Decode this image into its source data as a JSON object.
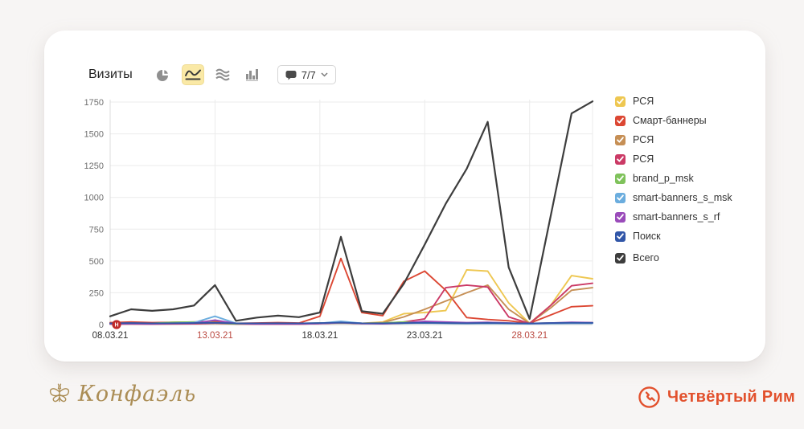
{
  "toolbar": {
    "title": "Визиты",
    "counter_label": "7/7",
    "buttons": [
      "pie-chart",
      "line-chart",
      "stacked-areas",
      "columns"
    ],
    "selected_button": "line-chart",
    "selected_bg": "#fae9a6"
  },
  "chart_data": {
    "type": "line",
    "title": "Визиты",
    "x": [
      "08.03.21",
      "09.03.21",
      "10.03.21",
      "11.03.21",
      "12.03.21",
      "13.03.21",
      "14.03.21",
      "15.03.21",
      "16.03.21",
      "17.03.21",
      "18.03.21",
      "19.03.21",
      "20.03.21",
      "21.03.21",
      "22.03.21",
      "23.03.21",
      "24.03.21",
      "25.03.21",
      "26.03.21",
      "27.03.21",
      "28.03.21",
      "29.03.21",
      "30.03.21",
      "31.03.21"
    ],
    "x_tick_indices": [
      0,
      5,
      10,
      15,
      20
    ],
    "x_tick_labels": [
      "08.03.21",
      "13.03.21",
      "18.03.21",
      "23.03.21",
      "28.03.21"
    ],
    "x_tick_is_weekend": [
      false,
      true,
      false,
      false,
      true
    ],
    "weekend_label_color": "#bb4a42",
    "weekday_label_color": "#333333",
    "ylim": [
      0,
      1750
    ],
    "y_ticks": [
      0,
      250,
      500,
      750,
      1000,
      1250,
      1500,
      1750
    ],
    "grid": true,
    "legend_position": "right",
    "holiday_marker": {
      "label": "Н",
      "x_index": 0,
      "color": "#c02929"
    },
    "series": [
      {
        "name": "РСЯ",
        "color": "#eec751",
        "values": [
          5,
          6,
          5,
          6,
          8,
          25,
          6,
          5,
          5,
          5,
          10,
          18,
          10,
          20,
          85,
          95,
          110,
          430,
          420,
          170,
          10,
          150,
          385,
          360
        ]
      },
      {
        "name": "Смарт-баннеры",
        "color": "#dc4733",
        "values": [
          15,
          20,
          15,
          18,
          20,
          25,
          10,
          12,
          15,
          12,
          65,
          520,
          95,
          70,
          340,
          420,
          270,
          55,
          40,
          30,
          10,
          75,
          140,
          148
        ]
      },
      {
        "name": "РСЯ",
        "color": "#c68f55",
        "values": [
          3,
          4,
          4,
          5,
          6,
          10,
          4,
          4,
          4,
          4,
          8,
          12,
          8,
          15,
          60,
          120,
          185,
          250,
          310,
          120,
          10,
          130,
          270,
          290
        ]
      },
      {
        "name": "РСЯ",
        "color": "#cb3a66",
        "values": [
          4,
          5,
          4,
          5,
          6,
          12,
          5,
          4,
          4,
          4,
          8,
          15,
          8,
          10,
          20,
          45,
          290,
          310,
          295,
          60,
          8,
          150,
          305,
          325
        ]
      },
      {
        "name": "brand_p_msk",
        "color": "#7fc25b",
        "values": [
          5,
          8,
          10,
          18,
          20,
          15,
          5,
          8,
          10,
          8,
          12,
          15,
          10,
          12,
          20,
          18,
          15,
          12,
          15,
          10,
          8,
          12,
          15,
          15
        ]
      },
      {
        "name": "smart-banners_s_msk",
        "color": "#6badde",
        "values": [
          8,
          10,
          8,
          10,
          15,
          65,
          10,
          8,
          8,
          6,
          10,
          25,
          10,
          8,
          10,
          12,
          10,
          8,
          10,
          8,
          5,
          8,
          10,
          10
        ]
      },
      {
        "name": "smart-banners_s_rf",
        "color": "#9a4bba",
        "values": [
          5,
          6,
          5,
          8,
          10,
          35,
          8,
          5,
          5,
          5,
          8,
          15,
          8,
          6,
          12,
          25,
          20,
          15,
          18,
          12,
          8,
          12,
          18,
          15
        ]
      },
      {
        "name": "Поиск",
        "color": "#3156a8",
        "values": [
          10,
          12,
          10,
          11,
          12,
          14,
          10,
          10,
          11,
          10,
          12,
          15,
          11,
          10,
          12,
          14,
          12,
          11,
          13,
          11,
          9,
          12,
          14,
          13
        ]
      },
      {
        "name": "Всего",
        "color": "#3d3d3d",
        "separated": true,
        "values": [
          65,
          120,
          108,
          120,
          150,
          310,
          30,
          55,
          70,
          58,
          95,
          690,
          105,
          85,
          320,
          630,
          950,
          1225,
          1594,
          450,
          45,
          850,
          1660,
          1755
        ]
      }
    ]
  },
  "footer": {
    "left_logo_text": "Конфаэль",
    "right_logo_text": "Четвёртый Рим"
  }
}
